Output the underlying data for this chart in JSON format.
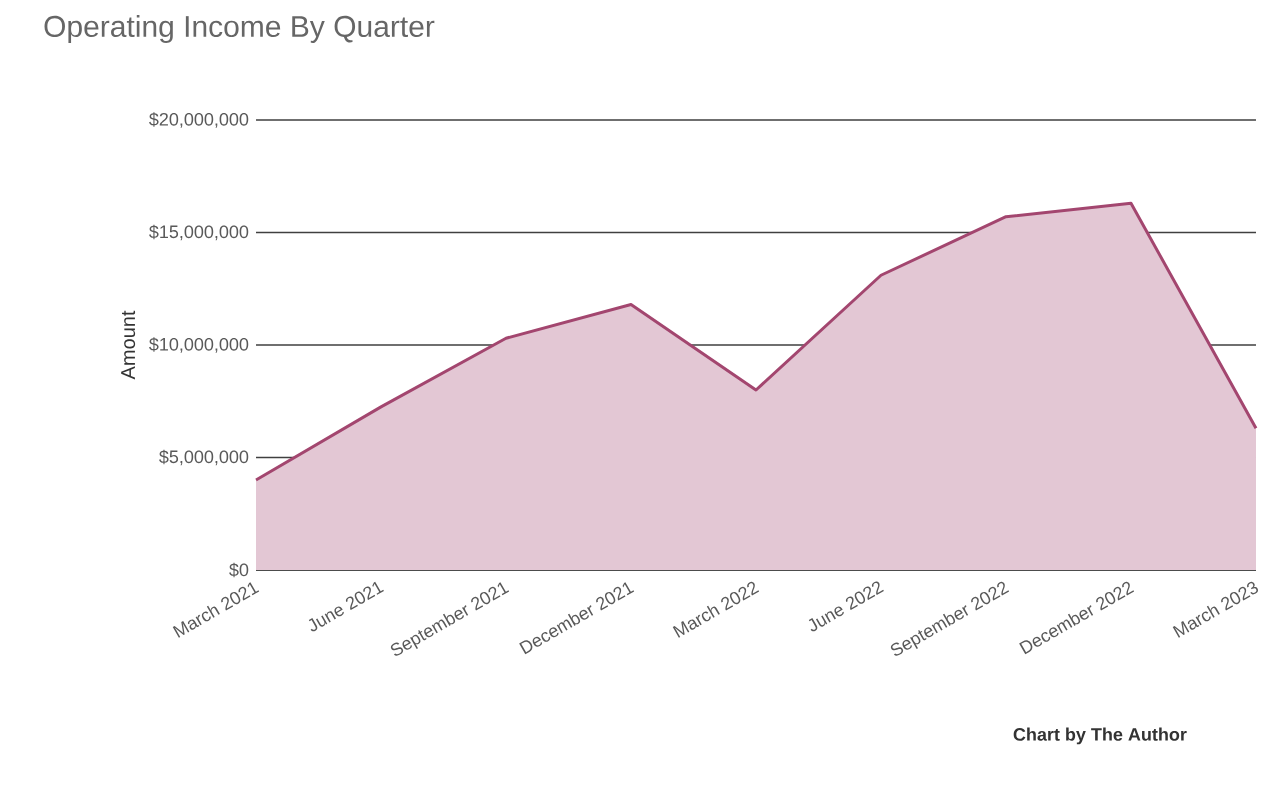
{
  "chart_data": {
    "type": "area",
    "title": "Operating Income By Quarter",
    "ylabel": "Amount",
    "categories": [
      "March 2021",
      "June 2021",
      "September 2021",
      "December 2021",
      "March 2022",
      "June 2022",
      "September 2022",
      "December 2022",
      "March 2023"
    ],
    "series": [
      {
        "color": "#a3466f",
        "values": [
          4000000,
          7250000,
          10300000,
          11800000,
          8000000,
          13100000,
          15700000,
          16300000,
          6300000
        ]
      }
    ],
    "ylim": [
      0,
      20000000
    ],
    "yticks": [
      {
        "value": 0,
        "label": "$0"
      },
      {
        "value": 5000000,
        "label": "$5,000,000"
      },
      {
        "value": 10000000,
        "label": "$10,000,000"
      },
      {
        "value": 15000000,
        "label": "$15,000,000"
      },
      {
        "value": 20000000,
        "label": "$20,000,000"
      }
    ],
    "grid": "y",
    "annotations": [
      "Chart by The Author"
    ]
  }
}
